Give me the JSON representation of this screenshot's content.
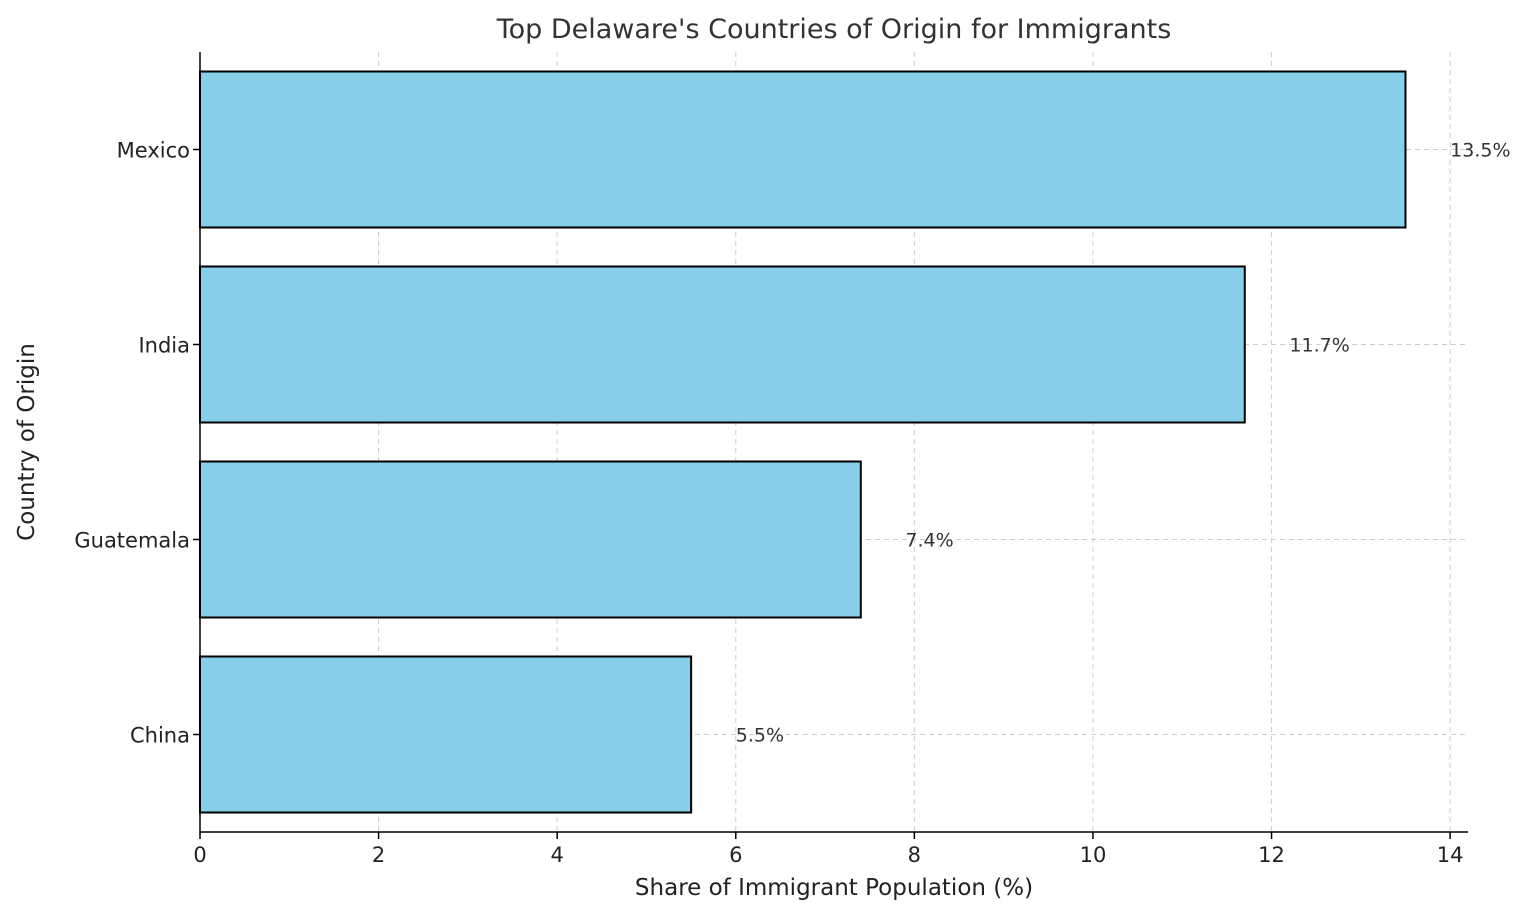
{
  "chart_data": {
    "type": "bar",
    "orientation": "horizontal",
    "title": "Top Delaware's Countries of Origin for Immigrants",
    "xlabel": "Share of Immigrant Population (%)",
    "ylabel": "Country of Origin",
    "categories": [
      "Mexico",
      "India",
      "Guatemala",
      "China"
    ],
    "values": [
      13.5,
      11.7,
      7.4,
      5.5
    ],
    "data_labels": [
      "13.5%",
      "11.7%",
      "7.4%",
      "5.5%"
    ],
    "xlim": [
      0,
      14.2
    ],
    "xticks": [
      0,
      2,
      4,
      6,
      8,
      10,
      12,
      14
    ],
    "grid": true,
    "colors": {
      "bar": "#87CEEB",
      "edge": "#000000",
      "grid": "#cccccc"
    }
  }
}
